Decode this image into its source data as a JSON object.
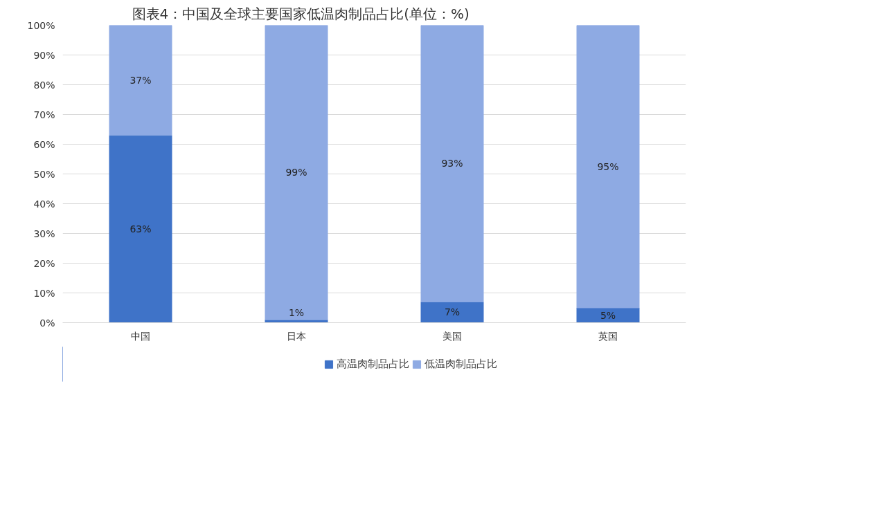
{
  "chart_data": {
    "type": "bar",
    "title": "图表4：中国及全球主要国家低温肉制品占比(单位：%)",
    "stacked": true,
    "categories": [
      "中国",
      "日本",
      "美国",
      "英国"
    ],
    "series": [
      {
        "name": "高温肉制品占比",
        "color": "#3f73c8",
        "values": [
          63,
          1,
          7,
          5
        ],
        "value_labels": [
          "63%",
          "1%",
          "7%",
          "5%"
        ]
      },
      {
        "name": "低温肉制品占比",
        "color": "#8eaae3",
        "values": [
          37,
          99,
          93,
          95
        ],
        "value_labels": [
          "37%",
          "99%",
          "93%",
          "95%"
        ]
      }
    ],
    "ylim": [
      0,
      100
    ],
    "yticks": [
      {
        "value": 0,
        "label": "0%"
      },
      {
        "value": 10,
        "label": "10%"
      },
      {
        "value": 20,
        "label": "20%"
      },
      {
        "value": 30,
        "label": "30%"
      },
      {
        "value": 40,
        "label": "40%"
      },
      {
        "value": 50,
        "label": "50%"
      },
      {
        "value": 60,
        "label": "60%"
      },
      {
        "value": 70,
        "label": "70%"
      },
      {
        "value": 80,
        "label": "80%"
      },
      {
        "value": 90,
        "label": "90%"
      },
      {
        "value": 100,
        "label": "100%"
      }
    ],
    "grid": "y",
    "legend": "bottom"
  }
}
